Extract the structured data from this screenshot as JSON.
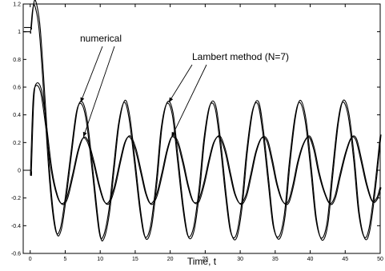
{
  "chart_data": {
    "type": "line",
    "title": "",
    "xlabel": "Time, t",
    "ylabel": "",
    "xlim": [
      -1,
      50
    ],
    "ylim": [
      -0.6,
      1.2
    ],
    "grid": false,
    "x_ticks": [
      0,
      5,
      10,
      15,
      20,
      25,
      30,
      35,
      40,
      45,
      50
    ],
    "y_ticks": [
      -0.6,
      -0.4,
      -0.2,
      0,
      0.2,
      0.4,
      0.6,
      0.8,
      1,
      1.2
    ],
    "x_tick_labels": [
      "0",
      "5",
      "10",
      "15",
      "20",
      "25",
      "30",
      "35",
      "40",
      "45",
      "50"
    ],
    "y_tick_labels": [
      "-0.6",
      "-0.4",
      "-0.2",
      "0",
      "0.2",
      "0.4",
      "0.6",
      "0.8",
      "1",
      "1.2"
    ],
    "series": [
      {
        "x": [
          -1,
          0,
          0.05,
          0.35,
          0.7,
          1.3,
          2,
          2.8,
          3.6,
          4.3,
          5.0,
          5.8,
          6.6,
          7.3,
          8.0,
          8.8,
          9.8,
          10.4,
          11.2,
          11.9,
          12.6,
          13.4,
          14.1,
          14.9,
          15.7,
          16.4,
          17.2,
          18.0,
          18.7,
          19.5,
          20.3,
          21.0,
          21.8,
          22.5,
          23.3,
          24.1,
          24.8,
          25.6,
          26.4,
          27.1,
          27.9,
          28.6,
          29.4,
          30.2,
          30.9,
          31.7,
          32.5,
          33.2,
          34.0,
          34.7,
          35.5,
          36.3,
          37.0,
          37.8,
          38.5,
          39.3,
          40.1,
          40.8,
          41.6,
          42.4,
          43.1,
          43.9,
          44.6,
          45.4,
          46.2,
          46.9,
          47.7,
          48.4,
          49.2,
          50.0
        ],
        "values": [
          1.0,
          1.0,
          1.0,
          1.16,
          1.18,
          1.0,
          0.5,
          -0.1,
          -0.43,
          -0.42,
          -0.2,
          0.12,
          0.42,
          0.48,
          0.36,
          0.02,
          -0.43,
          -0.48,
          -0.3,
          0.02,
          0.33,
          0.49,
          0.38,
          0.05,
          -0.3,
          -0.48,
          -0.4,
          -0.08,
          0.3,
          0.48,
          0.4,
          0.09,
          -0.27,
          -0.47,
          -0.42,
          -0.14,
          0.22,
          0.46,
          0.45,
          0.2,
          -0.18,
          -0.44,
          -0.47,
          -0.24,
          0.13,
          0.42,
          0.48,
          0.28,
          -0.09,
          -0.4,
          -0.48,
          -0.32,
          0.05,
          0.38,
          0.49,
          0.35,
          -0.01,
          -0.35,
          -0.49,
          -0.38,
          -0.04,
          0.33,
          0.49,
          0.4,
          0.08,
          -0.3,
          -0.48,
          -0.42,
          -0.13,
          0.25
        ]
      },
      {
        "x": [
          -1,
          0,
          0.05,
          0.4,
          0.8,
          1.5,
          2.2,
          3.0,
          3.8,
          4.5,
          5.2,
          6.0,
          6.8,
          7.5,
          8.2,
          9.0,
          9.8,
          10.5,
          11.2,
          12.0,
          12.8,
          13.5,
          14.2,
          15.0,
          15.8,
          16.5,
          17.2,
          18.0,
          18.8,
          19.5,
          20.2,
          21.0,
          21.8,
          22.5,
          23.2,
          24.0,
          24.8,
          25.5,
          26.2,
          27.0,
          27.8,
          28.5,
          29.2,
          30.0,
          30.8,
          31.5,
          32.2,
          33.0,
          33.8,
          34.5,
          35.2,
          36.0,
          36.8,
          37.5,
          38.2,
          39.0,
          39.8,
          40.5,
          41.2,
          42.0,
          42.8,
          43.5,
          44.2,
          45.0,
          45.8,
          46.5,
          47.2,
          48.0,
          48.8,
          49.5,
          50.0
        ],
        "values": [
          0.0,
          0.0,
          0.0,
          0.5,
          0.61,
          0.56,
          0.32,
          0.0,
          -0.18,
          -0.24,
          -0.2,
          -0.04,
          0.14,
          0.23,
          0.2,
          0.06,
          -0.11,
          -0.22,
          -0.23,
          -0.12,
          0.06,
          0.2,
          0.24,
          0.15,
          -0.02,
          -0.17,
          -0.24,
          -0.18,
          -0.02,
          0.14,
          0.24,
          0.2,
          0.05,
          -0.11,
          -0.22,
          -0.22,
          -0.09,
          0.07,
          0.2,
          0.24,
          0.14,
          -0.02,
          -0.17,
          -0.24,
          -0.18,
          -0.03,
          0.13,
          0.23,
          0.21,
          0.07,
          -0.1,
          -0.22,
          -0.23,
          -0.11,
          0.06,
          0.19,
          0.24,
          0.15,
          -0.02,
          -0.16,
          -0.24,
          -0.19,
          -0.04,
          0.12,
          0.23,
          0.22,
          0.08,
          -0.1,
          -0.22,
          -0.2,
          -0.12
        ]
      }
    ],
    "annotations": [
      {
        "text": "numerical",
        "points_to": [
          [
            7.2,
            0.49
          ],
          [
            7.6,
            0.24
          ]
        ]
      },
      {
        "text": "Lambert method (N=7)",
        "points_to": [
          [
            19.8,
            0.49
          ],
          [
            20.2,
            0.24
          ]
        ]
      }
    ]
  }
}
